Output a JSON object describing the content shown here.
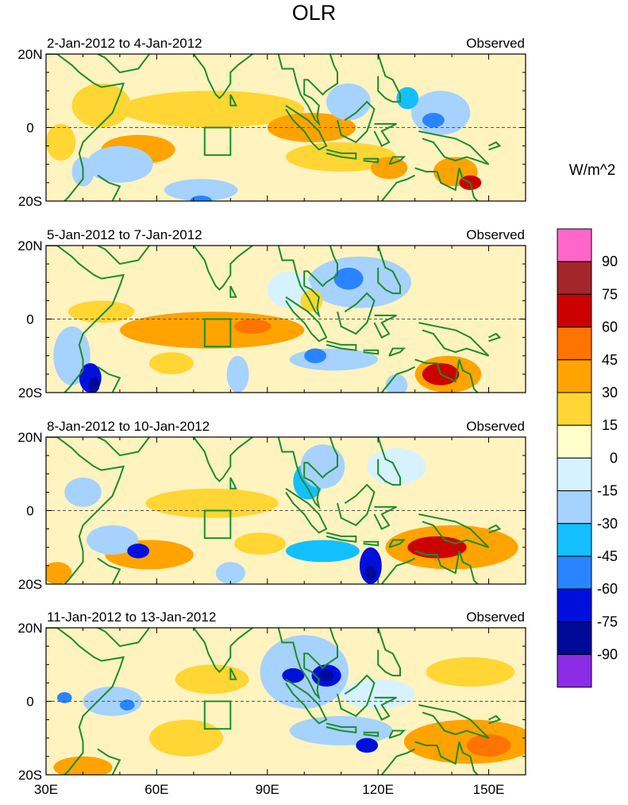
{
  "title": "OLR",
  "chart_data": {
    "type": "heatmap",
    "title": "OLR",
    "units": "W/m^2",
    "x_ticks": [
      "30E",
      "60E",
      "90E",
      "120E",
      "150E"
    ],
    "x_tick_values": [
      30,
      60,
      90,
      120,
      150
    ],
    "xlim": [
      30,
      160
    ],
    "y_ticks": [
      "20N",
      "0",
      "20S"
    ],
    "y_tick_values": [
      20,
      0,
      -20
    ],
    "ylim": [
      -20,
      20
    ],
    "colorbar": {
      "levels": [
        "90",
        "75",
        "60",
        "45",
        "30",
        "15",
        "0",
        "-15",
        "-30",
        "-45",
        "-60",
        "-75",
        "-90"
      ],
      "colors": [
        "#ff66cc",
        "#a3262a",
        "#cc0000",
        "#ff7300",
        "#ffa300",
        "#ffd633",
        "#ffffcc",
        "#d6f2ff",
        "#a6d2ff",
        "#14bfff",
        "#2b84ff",
        "#0010dc",
        "#000a99",
        "#8c2be6"
      ]
    },
    "panels": [
      {
        "date_range": "2-Jan-2012 to 4-Jan-2012",
        "label": "Observed",
        "features": [
          {
            "lon": 75,
            "lat": 5,
            "rx": 25,
            "ry": 5,
            "v": 25
          },
          {
            "lon": 102,
            "lat": 0,
            "rx": 12,
            "ry": 4,
            "v": 30
          },
          {
            "lon": 55,
            "lat": -6,
            "rx": 10,
            "ry": 4,
            "v": 30
          },
          {
            "lon": 110,
            "lat": -8,
            "rx": 15,
            "ry": 4,
            "v": 25
          },
          {
            "lon": 45,
            "lat": 6,
            "rx": 8,
            "ry": 6,
            "v": 20
          },
          {
            "lon": 141,
            "lat": -12,
            "rx": 6,
            "ry": 4,
            "v": 35
          },
          {
            "lon": 145,
            "lat": -15,
            "rx": 3,
            "ry": 2,
            "v": 60
          },
          {
            "lon": 123,
            "lat": -11,
            "rx": 5,
            "ry": 3,
            "v": 30
          },
          {
            "lon": 72,
            "lat": -17,
            "rx": 10,
            "ry": 3,
            "v": -20
          },
          {
            "lon": 72,
            "lat": -20,
            "rx": 3,
            "ry": 1.5,
            "v": -60
          },
          {
            "lon": 50,
            "lat": -10,
            "rx": 9,
            "ry": 5,
            "v": -25
          },
          {
            "lon": 137,
            "lat": 4,
            "rx": 8,
            "ry": 6,
            "v": -25
          },
          {
            "lon": 135,
            "lat": 2,
            "rx": 3,
            "ry": 2,
            "v": -60
          },
          {
            "lon": 112,
            "lat": 7,
            "rx": 6,
            "ry": 5,
            "v": -20
          },
          {
            "lon": 128,
            "lat": 8,
            "rx": 3,
            "ry": 3,
            "v": -40
          },
          {
            "lon": 34,
            "lat": -4,
            "rx": 4,
            "ry": 5,
            "v": 25
          },
          {
            "lon": 40,
            "lat": -12,
            "rx": 3,
            "ry": 4,
            "v": -25
          }
        ]
      },
      {
        "date_range": "5-Jan-2012 to 7-Jan-2012",
        "label": "Observed",
        "features": [
          {
            "lon": 75,
            "lat": -3,
            "rx": 25,
            "ry": 5,
            "v": 30
          },
          {
            "lon": 86,
            "lat": -2,
            "rx": 5,
            "ry": 2,
            "v": 55
          },
          {
            "lon": 45,
            "lat": 2,
            "rx": 9,
            "ry": 3,
            "v": 25
          },
          {
            "lon": 64,
            "lat": -12,
            "rx": 6,
            "ry": 3,
            "v": 25
          },
          {
            "lon": 139,
            "lat": -15,
            "rx": 9,
            "ry": 5,
            "v": 40
          },
          {
            "lon": 137,
            "lat": -15,
            "rx": 5,
            "ry": 3,
            "v": 60
          },
          {
            "lon": 37,
            "lat": -10,
            "rx": 5,
            "ry": 8,
            "v": -30
          },
          {
            "lon": 42,
            "lat": -16,
            "rx": 3,
            "ry": 4,
            "v": -75
          },
          {
            "lon": 43,
            "lat": -18,
            "rx": 1.5,
            "ry": 2,
            "v": -90
          },
          {
            "lon": 115,
            "lat": 10,
            "rx": 14,
            "ry": 7,
            "v": -25
          },
          {
            "lon": 112,
            "lat": 11,
            "rx": 4,
            "ry": 3,
            "v": -50
          },
          {
            "lon": 108,
            "lat": -11,
            "rx": 12,
            "ry": 3,
            "v": -25
          },
          {
            "lon": 103,
            "lat": -10,
            "rx": 3,
            "ry": 2,
            "v": -60
          },
          {
            "lon": 82,
            "lat": -15,
            "rx": 3,
            "ry": 5,
            "v": -30
          },
          {
            "lon": 125,
            "lat": -18,
            "rx": 3,
            "ry": 3,
            "v": -30
          },
          {
            "lon": 96,
            "lat": 8,
            "rx": 6,
            "ry": 5,
            "v": -15
          },
          {
            "lon": 102,
            "lat": 5,
            "rx": 3,
            "ry": 3,
            "v": 20
          }
        ]
      },
      {
        "date_range": "8-Jan-2012 to 10-Jan-2012",
        "label": "Observed",
        "features": [
          {
            "lon": 75,
            "lat": 2,
            "rx": 18,
            "ry": 4,
            "v": 25
          },
          {
            "lon": 58,
            "lat": -12,
            "rx": 12,
            "ry": 4,
            "v": 30
          },
          {
            "lon": 88,
            "lat": -9,
            "rx": 7,
            "ry": 3,
            "v": 20
          },
          {
            "lon": 140,
            "lat": -10,
            "rx": 18,
            "ry": 6,
            "v": 40
          },
          {
            "lon": 136,
            "lat": -10,
            "rx": 8,
            "ry": 3,
            "v": 60
          },
          {
            "lon": 33,
            "lat": -17,
            "rx": 4,
            "ry": 3,
            "v": 40
          },
          {
            "lon": 48,
            "lat": -8,
            "rx": 7,
            "ry": 4,
            "v": -25
          },
          {
            "lon": 55,
            "lat": -11,
            "rx": 3,
            "ry": 2,
            "v": -70
          },
          {
            "lon": 105,
            "lat": -11,
            "rx": 10,
            "ry": 3,
            "v": -40
          },
          {
            "lon": 118,
            "lat": -15,
            "rx": 3,
            "ry": 5,
            "v": -70
          },
          {
            "lon": 118,
            "lat": -17,
            "rx": 1.5,
            "ry": 2,
            "v": -90
          },
          {
            "lon": 101,
            "lat": 8,
            "rx": 4,
            "ry": 5,
            "v": -35
          },
          {
            "lon": 105,
            "lat": 12,
            "rx": 6,
            "ry": 6,
            "v": -25
          },
          {
            "lon": 80,
            "lat": -17,
            "rx": 4,
            "ry": 3,
            "v": -20
          },
          {
            "lon": 125,
            "lat": 12,
            "rx": 8,
            "ry": 5,
            "v": -15
          },
          {
            "lon": 40,
            "lat": 5,
            "rx": 5,
            "ry": 4,
            "v": -20
          }
        ]
      },
      {
        "date_range": "11-Jan-2012 to 13-Jan-2012",
        "label": "Observed",
        "features": [
          {
            "lon": 75,
            "lat": 6,
            "rx": 10,
            "ry": 4,
            "v": 20
          },
          {
            "lon": 68,
            "lat": -10,
            "rx": 10,
            "ry": 5,
            "v": 20
          },
          {
            "lon": 145,
            "lat": -11,
            "rx": 18,
            "ry": 6,
            "v": 30
          },
          {
            "lon": 150,
            "lat": -12,
            "rx": 6,
            "ry": 3,
            "v": 45
          },
          {
            "lon": 40,
            "lat": -18,
            "rx": 8,
            "ry": 3,
            "v": 30
          },
          {
            "lon": 145,
            "lat": 8,
            "rx": 12,
            "ry": 4,
            "v": 20
          },
          {
            "lon": 100,
            "lat": 8,
            "rx": 12,
            "ry": 10,
            "v": -30
          },
          {
            "lon": 97,
            "lat": 7,
            "rx": 3,
            "ry": 2,
            "v": -70
          },
          {
            "lon": 106,
            "lat": 7,
            "rx": 4,
            "ry": 3,
            "v": -70
          },
          {
            "lon": 106,
            "lat": 7,
            "rx": 2,
            "ry": 1.5,
            "v": -90
          },
          {
            "lon": 110,
            "lat": -8,
            "rx": 14,
            "ry": 4,
            "v": -25
          },
          {
            "lon": 117,
            "lat": -12,
            "rx": 3,
            "ry": 2,
            "v": -70
          },
          {
            "lon": 48,
            "lat": 0,
            "rx": 8,
            "ry": 4,
            "v": -25
          },
          {
            "lon": 52,
            "lat": -1,
            "rx": 2,
            "ry": 1.5,
            "v": -60
          },
          {
            "lon": 120,
            "lat": 2,
            "rx": 10,
            "ry": 4,
            "v": -15
          },
          {
            "lon": 35,
            "lat": 1,
            "rx": 2,
            "ry": 1.5,
            "v": -50
          }
        ]
      }
    ]
  }
}
